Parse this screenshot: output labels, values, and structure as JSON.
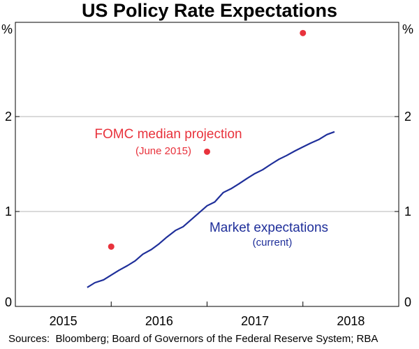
{
  "chart_data": {
    "type": "line",
    "title": "US Policy Rate Expectations",
    "unit_label_left": "%",
    "unit_label_right": "%",
    "ylim": [
      0,
      3
    ],
    "yticks": [
      0,
      1,
      2
    ],
    "ytick_labels": [
      "0",
      "1",
      "2"
    ],
    "xlim": [
      2014.5,
      2018.5
    ],
    "xtick_labels": [
      {
        "label": "2015",
        "x": 2015
      },
      {
        "label": "2016",
        "x": 2016
      },
      {
        "label": "2017",
        "x": 2017
      },
      {
        "label": "2018",
        "x": 2018
      }
    ],
    "year_boundaries": [
      2015.5,
      2016.5,
      2017.5
    ],
    "series": [
      {
        "name": "Market expectations",
        "sublabel": "(current)",
        "color": "#1f2f9a",
        "x": [
          2015.25,
          2015.33,
          2015.42,
          2015.5,
          2015.58,
          2015.67,
          2015.75,
          2015.83,
          2015.92,
          2016.0,
          2016.08,
          2016.17,
          2016.25,
          2016.33,
          2016.42,
          2016.5,
          2016.58,
          2016.67,
          2016.75,
          2016.83,
          2016.92,
          2017.0,
          2017.08,
          2017.17,
          2017.25,
          2017.33,
          2017.42,
          2017.5,
          2017.58,
          2017.67,
          2017.75,
          2017.83
        ],
        "values": [
          0.2,
          0.25,
          0.28,
          0.33,
          0.38,
          0.43,
          0.48,
          0.55,
          0.6,
          0.66,
          0.73,
          0.8,
          0.84,
          0.91,
          0.99,
          1.06,
          1.1,
          1.2,
          1.24,
          1.29,
          1.35,
          1.4,
          1.44,
          1.5,
          1.55,
          1.59,
          1.64,
          1.68,
          1.72,
          1.76,
          1.81,
          1.84
        ]
      },
      {
        "name": "FOMC median projection",
        "sublabel": "(June 2015)",
        "color": "#e8323c",
        "type": "scatter",
        "x": [
          2015.5,
          2016.5,
          2017.5
        ],
        "values": [
          0.63,
          1.63,
          2.88
        ]
      }
    ],
    "source": "Sources:  Bloomberg; Board of Governors of the Federal Reserve System; RBA"
  }
}
